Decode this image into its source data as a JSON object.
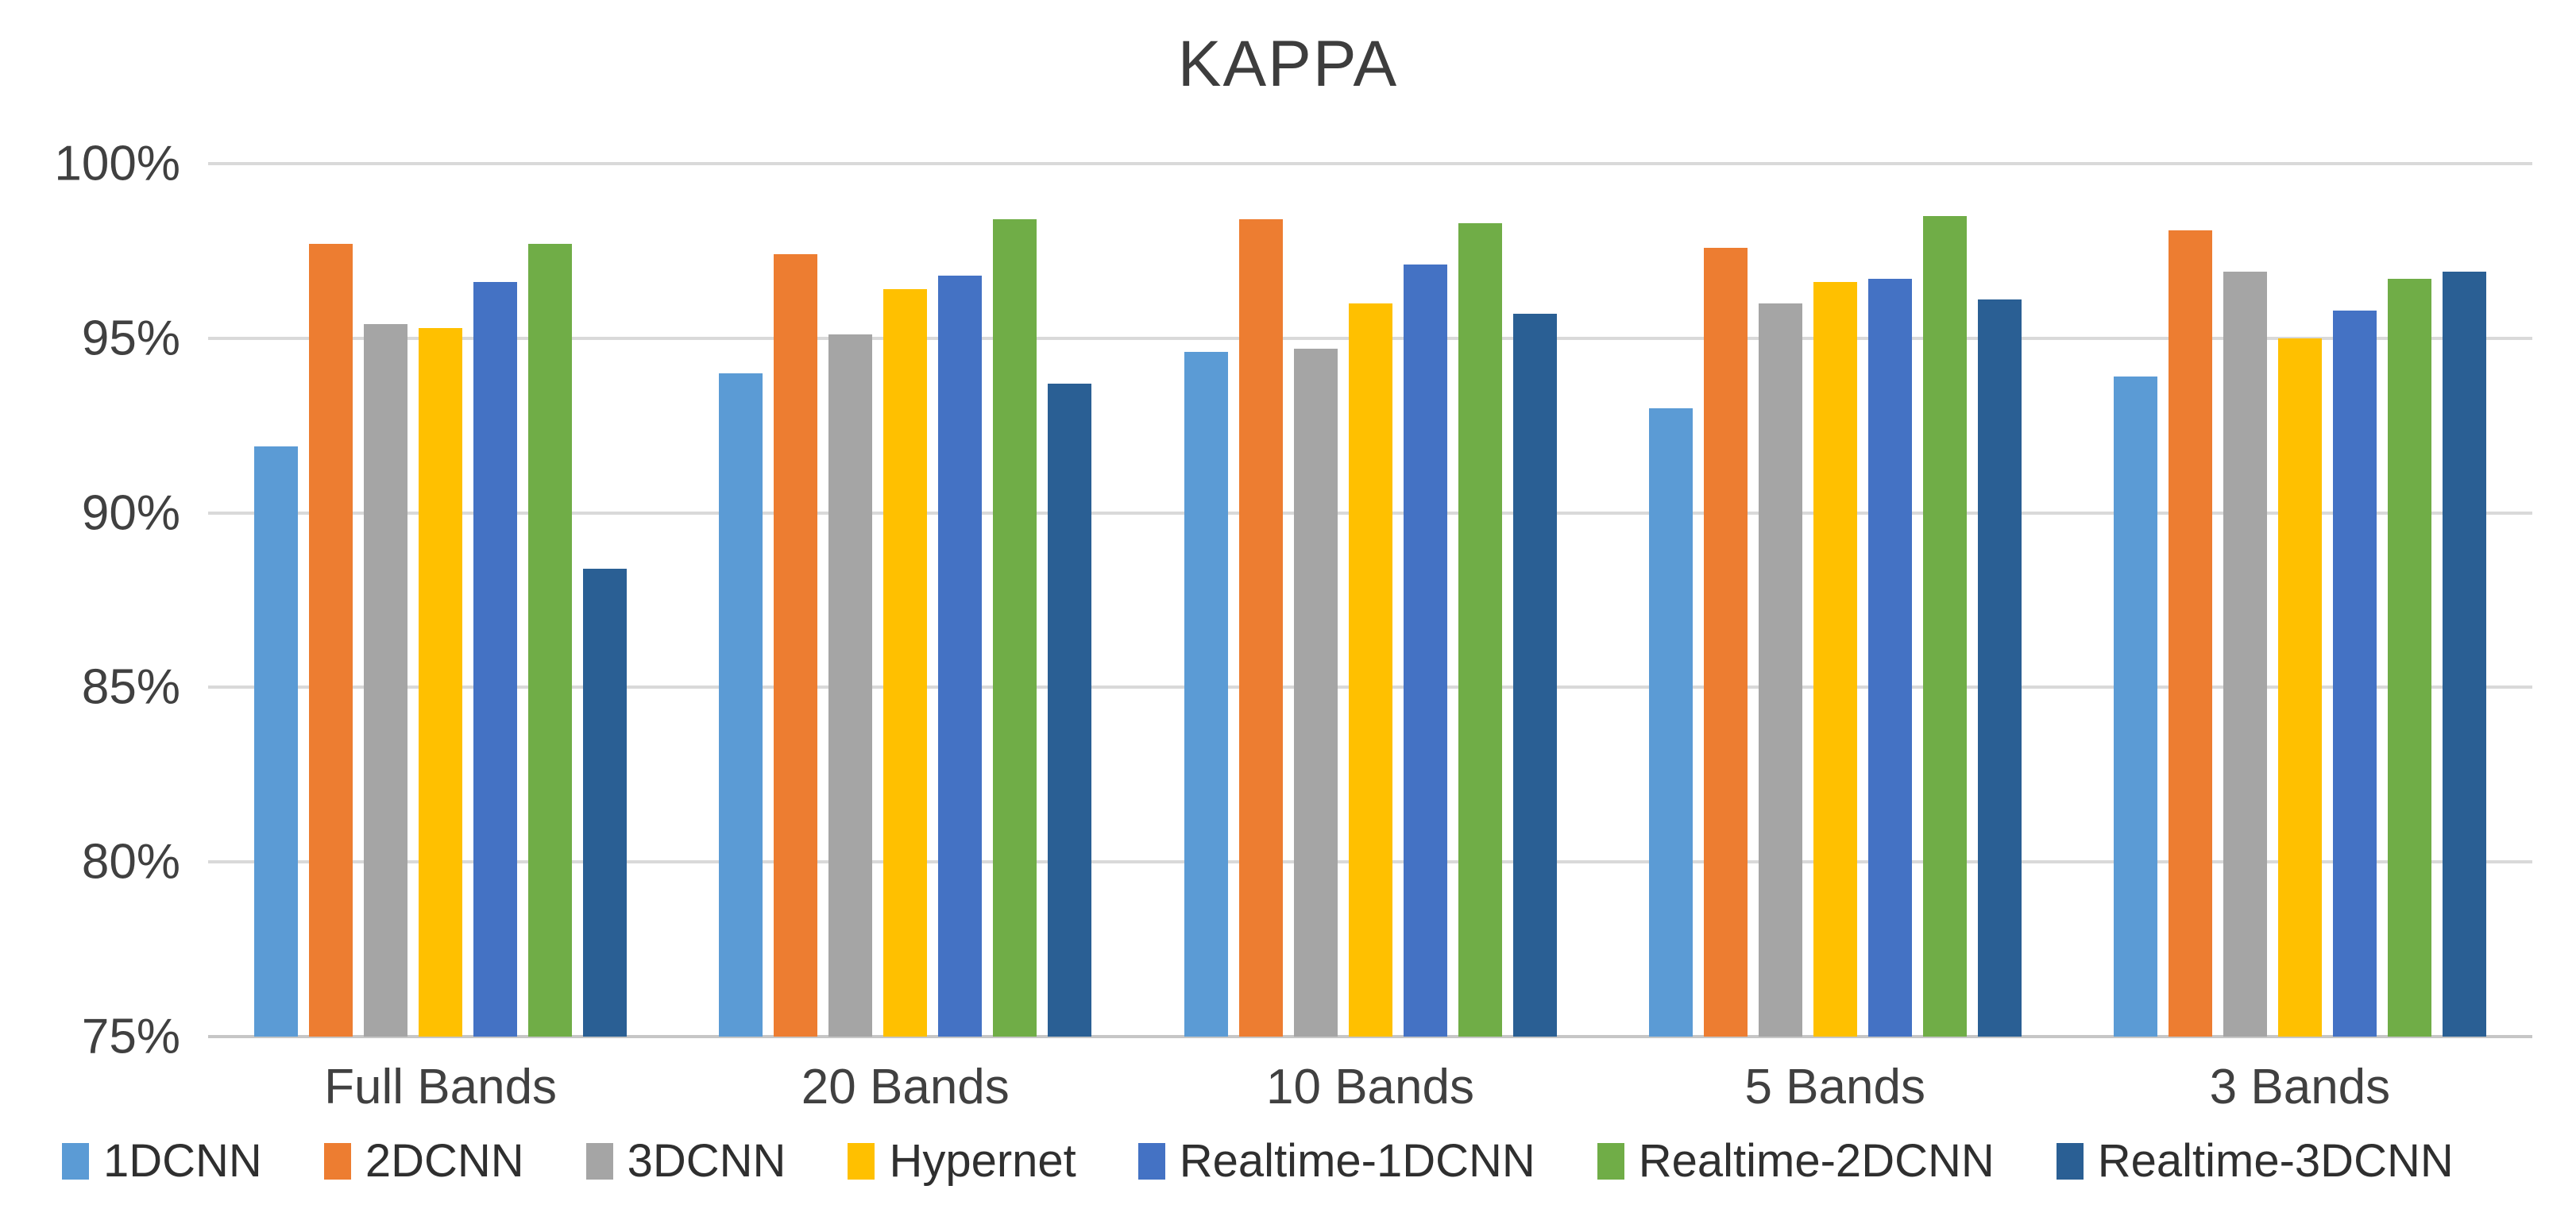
{
  "chart_data": {
    "type": "bar",
    "title": "KAPPA",
    "categories": [
      "Full Bands",
      "20 Bands",
      "10 Bands",
      "5 Bands",
      "3 Bands"
    ],
    "series": [
      {
        "name": "1DCNN",
        "color": "#5B9BD5",
        "values": [
          91.9,
          94.0,
          94.6,
          93.0,
          93.9
        ]
      },
      {
        "name": "2DCNN",
        "color": "#ED7D31",
        "values": [
          97.7,
          97.4,
          98.4,
          97.6,
          98.1
        ]
      },
      {
        "name": "3DCNN",
        "color": "#A5A5A5",
        "values": [
          95.4,
          95.1,
          94.7,
          96.0,
          96.9
        ]
      },
      {
        "name": "Hypernet",
        "color": "#FFC000",
        "values": [
          95.3,
          96.4,
          96.0,
          96.6,
          95.0
        ]
      },
      {
        "name": "Realtime-1DCNN",
        "color": "#4472C4",
        "values": [
          96.6,
          96.8,
          97.1,
          96.7,
          95.8
        ]
      },
      {
        "name": "Realtime-2DCNN",
        "color": "#70AD47",
        "values": [
          97.7,
          98.4,
          98.3,
          98.5,
          96.7
        ]
      },
      {
        "name": "Realtime-3DCNN",
        "color": "#2A5F94",
        "values": [
          88.4,
          93.7,
          95.7,
          96.1,
          96.9
        ]
      }
    ],
    "y_ticks": [
      "100%",
      "95%",
      "90%",
      "85%",
      "80%",
      "75%"
    ],
    "ylim": [
      75,
      100
    ],
    "grid": true,
    "legend_position": "bottom"
  }
}
